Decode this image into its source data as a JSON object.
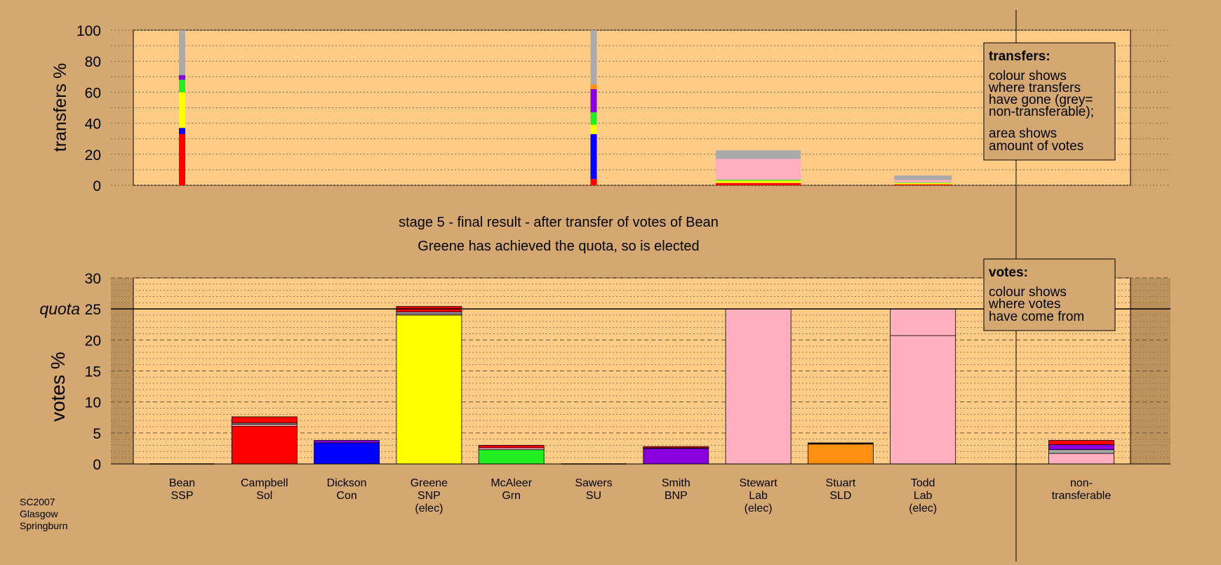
{
  "colors": {
    "SSP": "#ff0000",
    "Sol": "#ff0000",
    "Con": "#0000ff",
    "SNP": "#ffff00",
    "Grn": "#22ee22",
    "SU": "#888888",
    "BNP": "#8800dd",
    "Lab": "#ffb0c0",
    "SLD": "#ff9010",
    "non": "#aaaaaa"
  },
  "stage_title": "stage 5 - final result - after transfer of votes of Bean",
  "stage_subtitle": "Greene has achieved the quota, so is elected",
  "footer": [
    "SC2007",
    "Glasgow",
    "Springburn"
  ],
  "legend_transfers": {
    "heading": "transfers:",
    "lines": [
      "colour shows",
      "where transfers",
      "have gone (grey=",
      "non-transferable);"
    ],
    "lines2": [
      "area shows",
      "amount of votes"
    ]
  },
  "legend_votes": {
    "heading": "votes:",
    "lines": [
      "colour shows",
      "where votes",
      "have come from"
    ]
  },
  "chart_data": [
    {
      "type": "bar",
      "ylabel": "transfers %",
      "ylim": [
        0,
        100
      ],
      "yticks": [
        "0",
        "20",
        "40",
        "60",
        "80",
        "100"
      ],
      "columns": [
        {
          "index": 0,
          "width_share": 0.1,
          "segments": [
            {
              "party": "SSP",
              "value": 33
            },
            {
              "party": "Con",
              "value": 4
            },
            {
              "party": "SNP",
              "value": 23
            },
            {
              "party": "Grn",
              "value": 8
            },
            {
              "party": "BNP",
              "value": 3
            },
            {
              "party": "non",
              "value": 29
            }
          ]
        },
        {
          "index": 5,
          "width_share": 0.1,
          "segments": [
            {
              "party": "SSP",
              "value": 4
            },
            {
              "party": "Con",
              "value": 29
            },
            {
              "party": "SNP",
              "value": 6
            },
            {
              "party": "Grn",
              "value": 8
            },
            {
              "party": "BNP",
              "value": 15
            },
            {
              "party": "SLD",
              "value": 3
            },
            {
              "party": "non",
              "value": 35
            }
          ]
        },
        {
          "index": 7,
          "width_share": 1.3,
          "segments": [
            {
              "party": "SSP",
              "value": 1.5
            },
            {
              "party": "SNP",
              "value": 1.5
            },
            {
              "party": "Grn",
              "value": 0.6
            },
            {
              "party": "Lab",
              "value": 13.4
            },
            {
              "party": "non",
              "value": 5.5
            }
          ]
        },
        {
          "index": 9,
          "width_share": 0.88,
          "segments": [
            {
              "party": "SSP",
              "value": 0.6
            },
            {
              "party": "SNP",
              "value": 0.8
            },
            {
              "party": "Grn",
              "value": 0.3
            },
            {
              "party": "Lab",
              "value": 1.8
            },
            {
              "party": "non",
              "value": 2.8
            }
          ]
        }
      ]
    },
    {
      "type": "bar",
      "ylabel": "votes %",
      "quota_label": "quota",
      "quota": 25,
      "ylim": [
        0,
        30
      ],
      "yticks": [
        "0",
        "5",
        "10",
        "15",
        "20",
        "25",
        "30"
      ],
      "categories": [
        {
          "name": "Bean",
          "party": "SSP",
          "elected": ""
        },
        {
          "name": "Campbell",
          "party": "Sol",
          "elected": ""
        },
        {
          "name": "Dickson",
          "party": "Con",
          "elected": ""
        },
        {
          "name": "Greene",
          "party": "SNP",
          "elected": "(elec)"
        },
        {
          "name": "McAleer",
          "party": "Grn",
          "elected": ""
        },
        {
          "name": "Sawers",
          "party": "SU",
          "elected": ""
        },
        {
          "name": "Smith",
          "party": "BNP",
          "elected": ""
        },
        {
          "name": "Stewart",
          "party": "Lab",
          "elected": "(elec)"
        },
        {
          "name": "Stuart",
          "party": "SLD",
          "elected": ""
        },
        {
          "name": "Todd",
          "party": "Lab",
          "elected": "(elec)"
        }
      ],
      "nontransferable_label": [
        "non-",
        "transferable"
      ],
      "stacks": [
        [],
        [
          {
            "party": "Sol",
            "value": 6.1
          },
          {
            "party": "Lab",
            "value": 0.3
          },
          {
            "party": "non",
            "value": 0.2
          },
          {
            "party": "SSP",
            "value": 1.0
          }
        ],
        [
          {
            "party": "Con",
            "value": 3.4
          },
          {
            "party": "BNP",
            "value": 0.4
          }
        ],
        [
          {
            "party": "SNP",
            "value": 24.0
          },
          {
            "party": "Lab",
            "value": 0.2
          },
          {
            "party": "non",
            "value": 0.3
          },
          {
            "party": "SSP",
            "value": 0.9
          }
        ],
        [
          {
            "party": "Grn",
            "value": 2.3
          },
          {
            "party": "Lab",
            "value": 0.3
          },
          {
            "party": "SSP",
            "value": 0.4
          }
        ],
        [],
        [
          {
            "party": "BNP",
            "value": 2.5
          },
          {
            "party": "Lab",
            "value": 0.1
          },
          {
            "party": "SSP",
            "value": 0.2
          }
        ],
        [
          {
            "party": "Lab",
            "value": 25.0
          }
        ],
        [
          {
            "party": "SLD",
            "value": 3.2
          },
          {
            "party": "Lab",
            "value": 0.1
          },
          {
            "party": "SSP",
            "value": 0.1
          }
        ],
        [
          {
            "party": "Lab",
            "value": 20.7
          },
          {
            "party": "Lab",
            "value": 4.3
          }
        ]
      ],
      "nontransferable_stack": [
        {
          "party": "Lab",
          "value": 1.7
        },
        {
          "party": "non",
          "value": 0.6
        },
        {
          "party": "BNP",
          "value": 0.8
        },
        {
          "party": "SSP",
          "value": 0.7
        }
      ]
    }
  ]
}
